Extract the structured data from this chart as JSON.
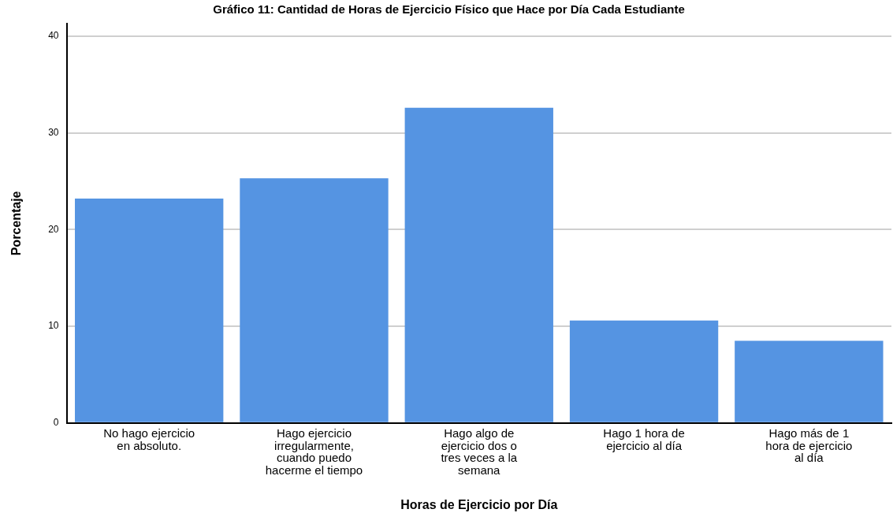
{
  "chart_data": {
    "type": "bar",
    "title": "Gráfico 11: Cantidad de Horas de Ejercicio Físico que Hace por Día Cada Estudiante",
    "xlabel": "Horas de Ejercicio por Día",
    "ylabel": "Porcentaje",
    "categories": [
      "No hago ejercicio en absoluto.",
      "Hago ejercicio irregularmente, cuando puedo hacerme el tiempo",
      "Hago algo de ejercicio dos o tres veces a la semana",
      "Hago 1 hora de ejercicio al día",
      "Hago más de 1 hora de ejercicio al día"
    ],
    "values": [
      23.2,
      25.3,
      32.6,
      10.6,
      8.5
    ],
    "color": "#5594e2",
    "ylim": [
      0,
      41.3
    ],
    "yticks": [
      0,
      10,
      20,
      30,
      40
    ],
    "grid": "y"
  }
}
